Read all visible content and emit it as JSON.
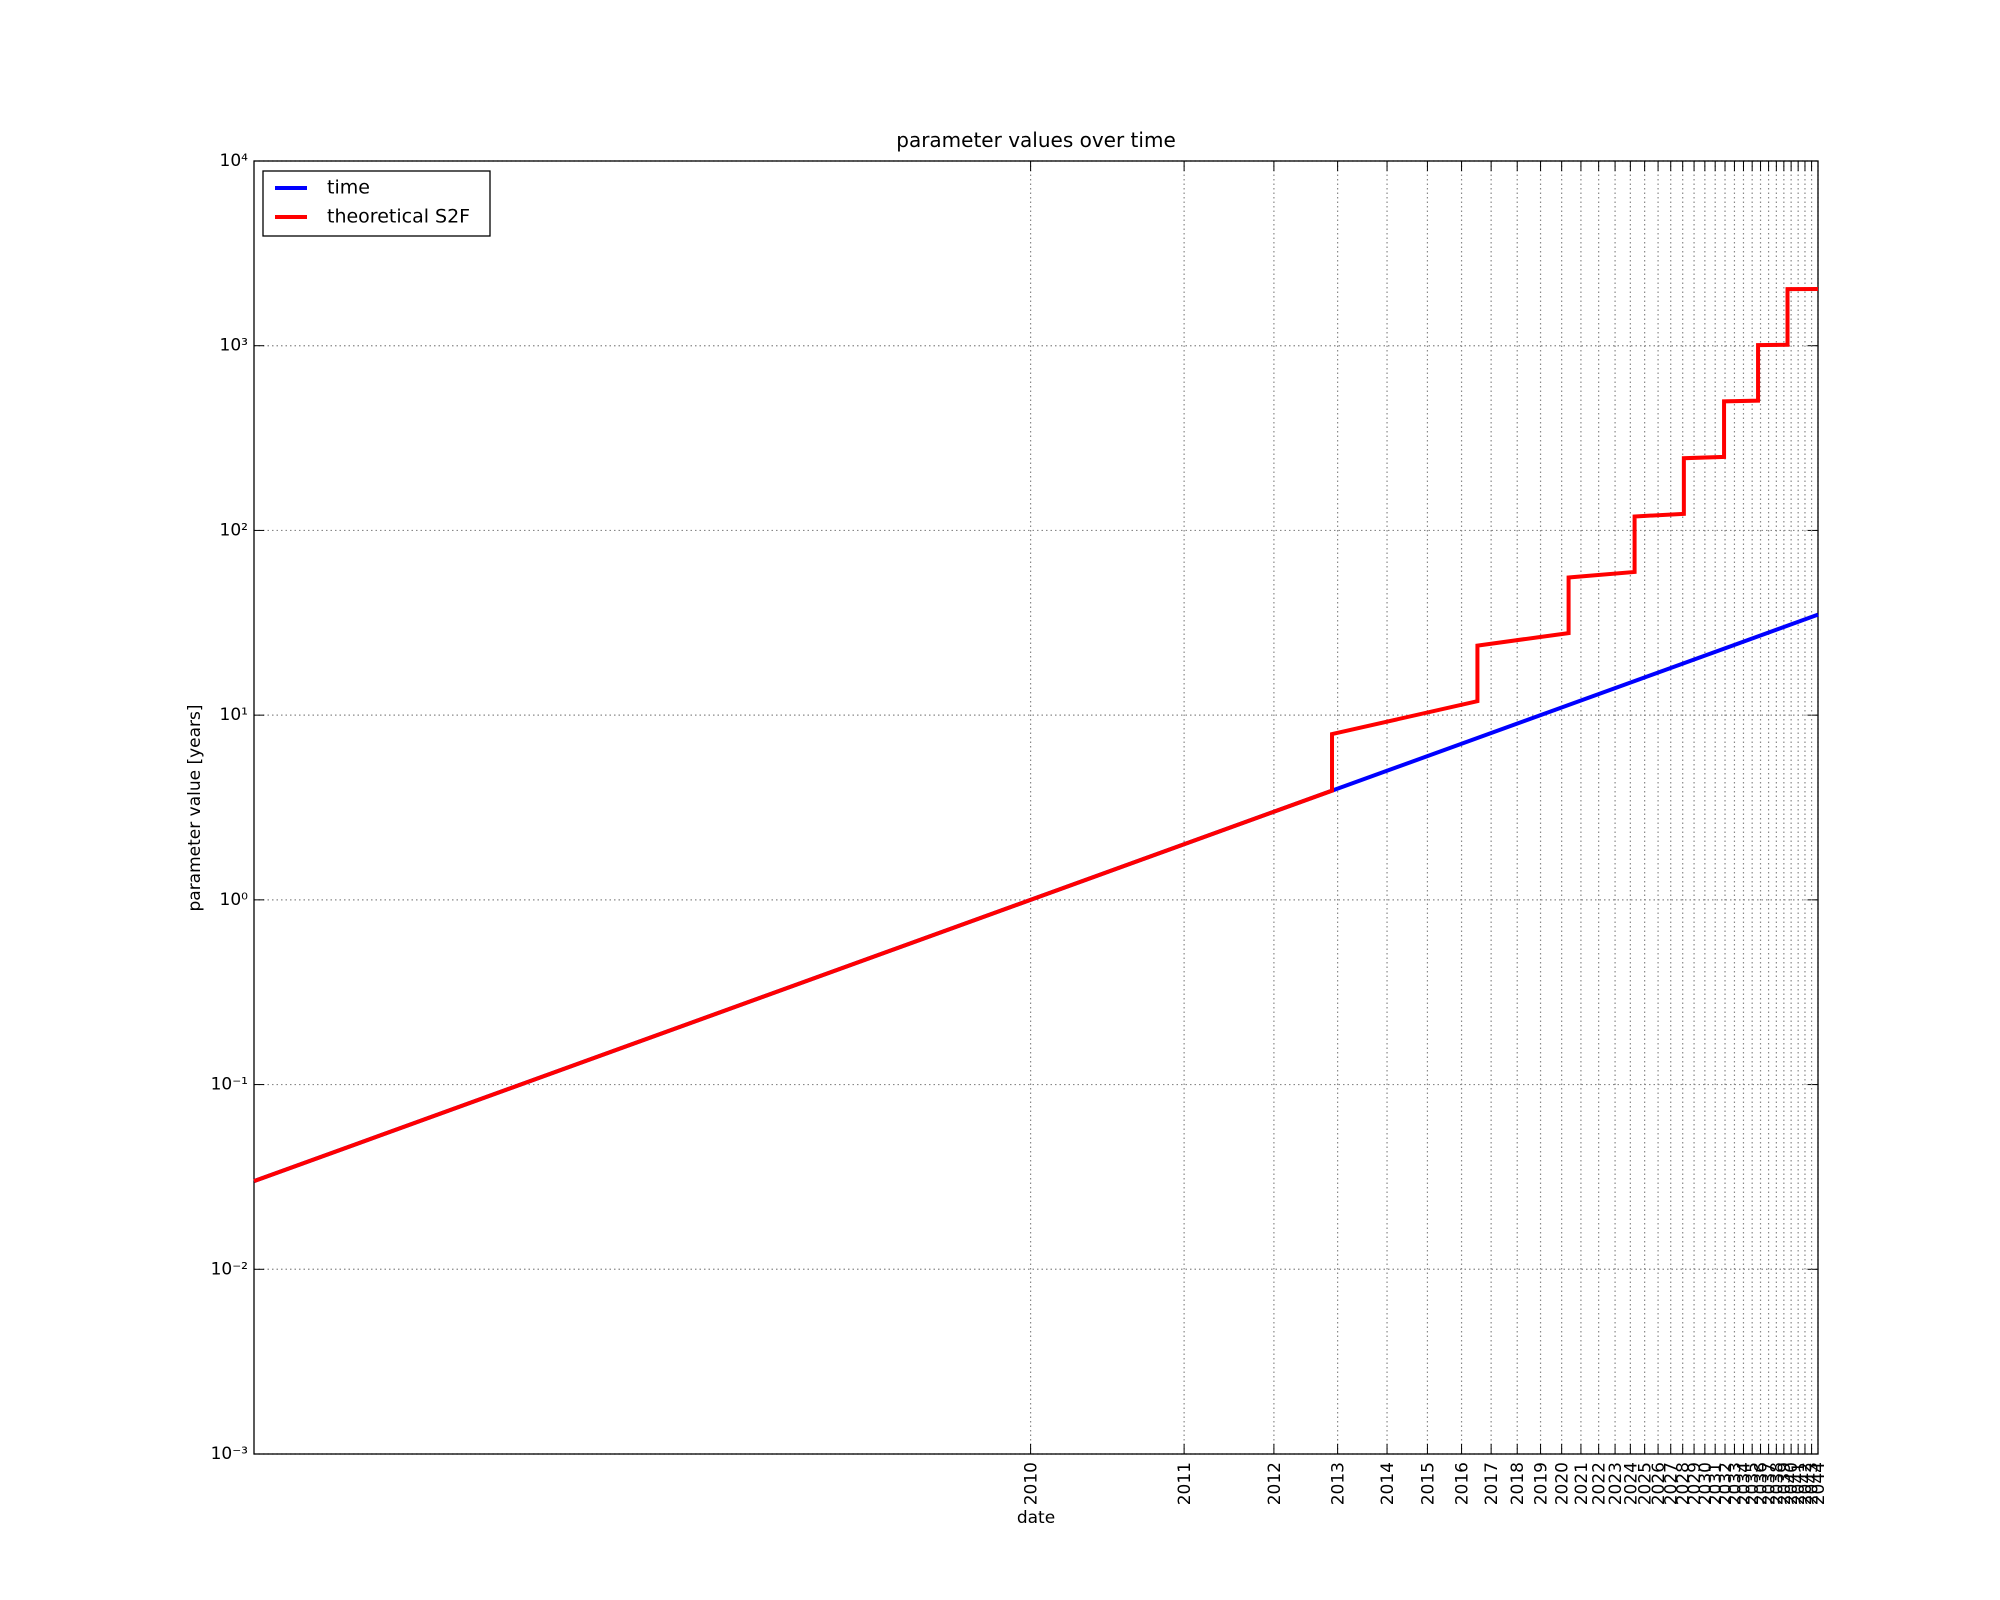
{
  "chart_data": {
    "type": "line",
    "title": "parameter values over time",
    "x_label": "date",
    "y_label": "parameter value [years]",
    "xscale": "log",
    "yscale": "log",
    "grid": true,
    "legend": "upper left",
    "xlim": [
      0.03,
      35
    ],
    "ylim": [
      0.001,
      10000
    ],
    "xticks": [
      {
        "value": 1,
        "label": "2010"
      },
      {
        "value": 2,
        "label": "2011"
      },
      {
        "value": 3,
        "label": "2012"
      },
      {
        "value": 4,
        "label": "2013"
      },
      {
        "value": 5,
        "label": "2014"
      },
      {
        "value": 6,
        "label": "2015"
      },
      {
        "value": 7,
        "label": "2016"
      },
      {
        "value": 8,
        "label": "2017"
      },
      {
        "value": 9,
        "label": "2018"
      },
      {
        "value": 10,
        "label": "2019"
      },
      {
        "value": 11,
        "label": "2020"
      },
      {
        "value": 12,
        "label": "2021"
      },
      {
        "value": 13,
        "label": "2022"
      },
      {
        "value": 14,
        "label": "2023"
      },
      {
        "value": 15,
        "label": "2024"
      },
      {
        "value": 16,
        "label": "2025"
      },
      {
        "value": 17,
        "label": "2026"
      },
      {
        "value": 18,
        "label": "2027"
      },
      {
        "value": 19,
        "label": "2028"
      },
      {
        "value": 20,
        "label": "2029"
      },
      {
        "value": 21,
        "label": "2030"
      },
      {
        "value": 22,
        "label": "2031"
      },
      {
        "value": 23,
        "label": "2032"
      },
      {
        "value": 24,
        "label": "2033"
      },
      {
        "value": 25,
        "label": "2034"
      },
      {
        "value": 26,
        "label": "2035"
      },
      {
        "value": 27,
        "label": "2036"
      },
      {
        "value": 28,
        "label": "2037"
      },
      {
        "value": 29,
        "label": "2038"
      },
      {
        "value": 30,
        "label": "2039"
      },
      {
        "value": 31,
        "label": "2040"
      },
      {
        "value": 32,
        "label": "2041"
      },
      {
        "value": 33,
        "label": "2042"
      },
      {
        "value": 34,
        "label": "2043"
      },
      {
        "value": 35,
        "label": "2044"
      }
    ],
    "yticks": [
      {
        "value": 0.001,
        "label": "10⁻³"
      },
      {
        "value": 0.01,
        "label": "10⁻²"
      },
      {
        "value": 0.1,
        "label": "10⁻¹"
      },
      {
        "value": 1,
        "label": "10⁰"
      },
      {
        "value": 10,
        "label": "10¹"
      },
      {
        "value": 100,
        "label": "10²"
      },
      {
        "value": 1000,
        "label": "10³"
      },
      {
        "value": 10000,
        "label": "10⁴"
      }
    ],
    "series": [
      {
        "name": "time",
        "color": "#0000ff",
        "x": [
          0.03,
          35
        ],
        "values": [
          0.03,
          35
        ]
      },
      {
        "name": "theoretical S2F",
        "color": "#ff0000",
        "x": [
          0.03,
          3.9,
          3.9,
          7.52,
          7.52,
          11.35,
          11.35,
          15.29,
          15.29,
          19.1,
          19.1,
          22.9,
          22.9,
          26.7,
          26.7,
          30.5,
          30.5,
          35
        ],
        "values": [
          0.03,
          3.9,
          7.9,
          11.9,
          23.8,
          27.8,
          55.6,
          59.6,
          119,
          123,
          246,
          250,
          500,
          504,
          1008,
          1012,
          2024,
          2029
        ]
      }
    ]
  }
}
